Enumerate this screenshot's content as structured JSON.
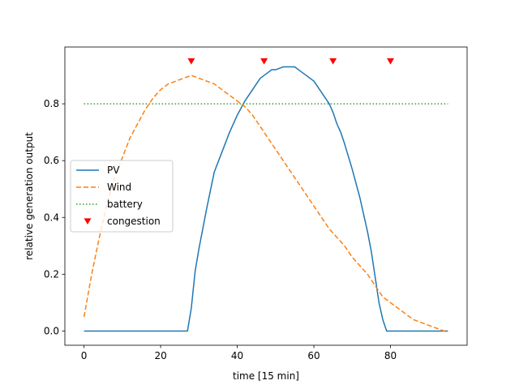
{
  "chart_data": {
    "type": "line",
    "xlabel": "time [15 min]",
    "ylabel": "relative generation output",
    "xlim": [
      -5,
      100
    ],
    "ylim": [
      -0.05,
      1.0
    ],
    "xticks": [
      0,
      20,
      40,
      60,
      80
    ],
    "yticks": [
      0.0,
      0.2,
      0.4,
      0.6,
      0.8
    ],
    "ytick_labels": [
      "0.0",
      "0.2",
      "0.4",
      "0.6",
      "0.8"
    ],
    "grid": false,
    "legend_position": "center-left",
    "series": [
      {
        "name": "PV",
        "style": "solid",
        "color": "#1f77b4",
        "x": [
          0,
          5,
          10,
          15,
          20,
          25,
          27,
          28,
          29,
          30,
          32,
          34,
          36,
          38,
          40,
          42,
          44,
          46,
          48,
          49,
          50,
          52,
          54,
          55,
          56,
          58,
          60,
          62,
          64,
          65,
          66,
          67,
          68,
          70,
          72,
          73,
          74,
          75,
          76,
          77,
          78,
          79,
          80,
          85,
          90,
          95
        ],
        "y": [
          0,
          0,
          0,
          0,
          0,
          0,
          0,
          0.08,
          0.21,
          0.29,
          0.43,
          0.56,
          0.63,
          0.7,
          0.76,
          0.81,
          0.85,
          0.89,
          0.91,
          0.92,
          0.92,
          0.93,
          0.93,
          0.93,
          0.92,
          0.9,
          0.88,
          0.84,
          0.8,
          0.77,
          0.73,
          0.7,
          0.66,
          0.57,
          0.47,
          0.41,
          0.35,
          0.28,
          0.19,
          0.1,
          0.04,
          0,
          0,
          0,
          0,
          0
        ]
      },
      {
        "name": "Wind",
        "style": "dashed",
        "color": "#ff7f0e",
        "x": [
          0,
          2,
          4,
          6,
          8,
          10,
          12,
          14,
          16,
          18,
          20,
          22,
          24,
          26,
          28,
          30,
          32,
          34,
          36,
          38,
          40,
          42,
          44,
          46,
          48,
          50,
          52,
          54,
          56,
          58,
          60,
          62,
          64,
          66,
          68,
          70,
          72,
          74,
          76,
          78,
          80,
          82,
          84,
          86,
          88,
          90,
          92,
          94,
          95
        ],
        "y": [
          0.05,
          0.2,
          0.33,
          0.45,
          0.54,
          0.61,
          0.68,
          0.73,
          0.78,
          0.82,
          0.85,
          0.87,
          0.88,
          0.89,
          0.9,
          0.89,
          0.88,
          0.87,
          0.85,
          0.83,
          0.81,
          0.79,
          0.76,
          0.72,
          0.68,
          0.64,
          0.6,
          0.56,
          0.52,
          0.48,
          0.44,
          0.4,
          0.36,
          0.33,
          0.3,
          0.26,
          0.23,
          0.2,
          0.16,
          0.12,
          0.1,
          0.08,
          0.06,
          0.04,
          0.03,
          0.02,
          0.01,
          0.0,
          0.0
        ]
      },
      {
        "name": "battery",
        "style": "dotted",
        "color": "#2ca02c",
        "x": [
          0,
          95
        ],
        "y": [
          0.8,
          0.8
        ]
      }
    ],
    "markers": {
      "name": "congestion",
      "marker": "triangle-down",
      "color": "#ff0000",
      "x": [
        28,
        47,
        65,
        80
      ],
      "y": [
        0.95,
        0.95,
        0.95,
        0.95
      ]
    }
  }
}
